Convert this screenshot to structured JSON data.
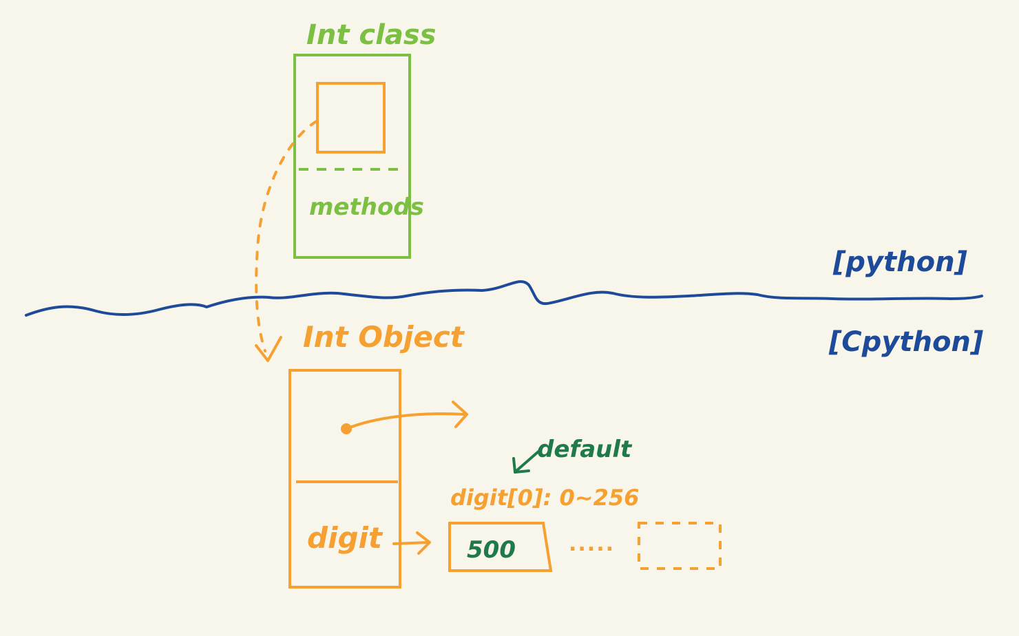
{
  "diagram": {
    "int_class": {
      "title": "Int class",
      "methods_label": "methods"
    },
    "layer_labels": {
      "upper": "[python]",
      "lower": "[Cpython]"
    },
    "int_object": {
      "title": "Int Object",
      "digit_label": "digit"
    },
    "annotations": {
      "default_label": "default",
      "range_label": "digit[0]: 0~256",
      "digit_value": "500",
      "ellipsis": "....."
    },
    "colors": {
      "background": "#f8f6ea",
      "class_green": "#7bc043",
      "object_orange": "#f5a030",
      "boundary_blue": "#1e4a9a",
      "note_dark_green": "#1f7a4a"
    }
  }
}
